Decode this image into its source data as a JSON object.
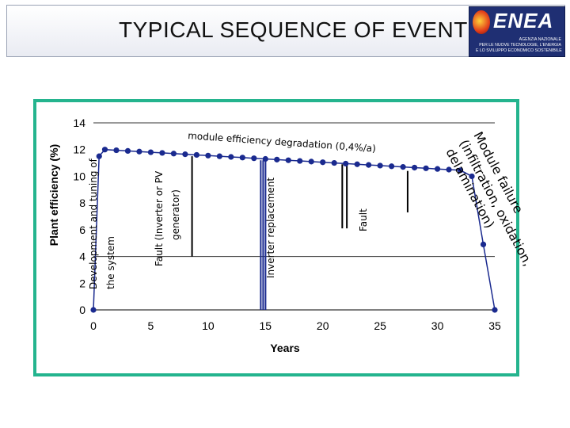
{
  "header": {
    "title": "TYPICAL SEQUENCE OF EVENTS",
    "logo": {
      "wordmark": "ENEA",
      "line1": "AGENZIA NAZIONALE",
      "line2": "PER LE NUOVE TECNOLOGIE, L'ENERGIA",
      "line3": "E LO SVILUPPO ECONOMICO SOSTENIBILE"
    }
  },
  "chart_data": {
    "type": "line",
    "title": "",
    "xlabel": "Years",
    "ylabel": "Plant efficiency (%)",
    "xlim": [
      0,
      35
    ],
    "ylim": [
      0,
      14
    ],
    "xticks": [
      "0",
      "5",
      "10",
      "15",
      "20",
      "25",
      "30",
      "35"
    ],
    "yticks": [
      "0",
      "2",
      "4",
      "6",
      "8",
      "10",
      "12",
      "14"
    ],
    "gridlines_y": [
      4,
      14
    ],
    "series": [
      {
        "name": "Plant efficiency",
        "color": "#1a2a8f",
        "points": [
          [
            0.0,
            0.0
          ],
          [
            0.5,
            11.5
          ],
          [
            1.0,
            12.0
          ],
          [
            2.0,
            11.95
          ],
          [
            3.0,
            11.9
          ],
          [
            4.0,
            11.85
          ],
          [
            5.0,
            11.8
          ],
          [
            6.0,
            11.75
          ],
          [
            7.0,
            11.7
          ],
          [
            8.0,
            11.65
          ],
          [
            9.0,
            11.6
          ],
          [
            10.0,
            11.55
          ],
          [
            11.0,
            11.5
          ],
          [
            12.0,
            11.45
          ],
          [
            13.0,
            11.4
          ],
          [
            14.0,
            11.35
          ],
          [
            15.0,
            11.3
          ],
          [
            16.0,
            11.25
          ],
          [
            17.0,
            11.2
          ],
          [
            18.0,
            11.15
          ],
          [
            19.0,
            11.1
          ],
          [
            20.0,
            11.05
          ],
          [
            21.0,
            11.0
          ],
          [
            22.0,
            10.95
          ],
          [
            23.0,
            10.9
          ],
          [
            24.0,
            10.85
          ],
          [
            25.0,
            10.8
          ],
          [
            26.0,
            10.75
          ],
          [
            27.0,
            10.7
          ],
          [
            28.0,
            10.65
          ],
          [
            29.0,
            10.6
          ],
          [
            30.0,
            10.55
          ],
          [
            31.0,
            10.5
          ],
          [
            32.0,
            10.45
          ],
          [
            33.0,
            10.0
          ],
          [
            34.0,
            4.9
          ],
          [
            35.0,
            0.0
          ]
        ]
      }
    ],
    "events": [
      {
        "kind": "fault-bar",
        "x": 8.6,
        "y_top": 11.5,
        "y_bottom": 4.0
      },
      {
        "kind": "inverter-replacement",
        "x": 14.8,
        "y_top": 11.2,
        "y_bottom": 0.0
      },
      {
        "kind": "fault-bar",
        "x": 21.7,
        "y_top": 10.9,
        "y_bottom": 6.1
      },
      {
        "kind": "fault-bar",
        "x": 22.1,
        "y_top": 10.9,
        "y_bottom": 6.1
      },
      {
        "kind": "fault-bar",
        "x": 27.4,
        "y_top": 10.4,
        "y_bottom": 7.3
      }
    ],
    "annotations": {
      "development": "Development and tuning of",
      "development2": "the system",
      "fault_inverter": "Fault (Inverter or PV",
      "fault_inverter2": "generator)",
      "degradation": "module efficiency degradation (0,4%/a)",
      "inverter_replacement": "Inverter replacement",
      "fault": "Fault",
      "module_failure1": "Module failure",
      "module_failure2": "(infiltration, oxidation,",
      "module_failure3": "delamination)"
    }
  }
}
